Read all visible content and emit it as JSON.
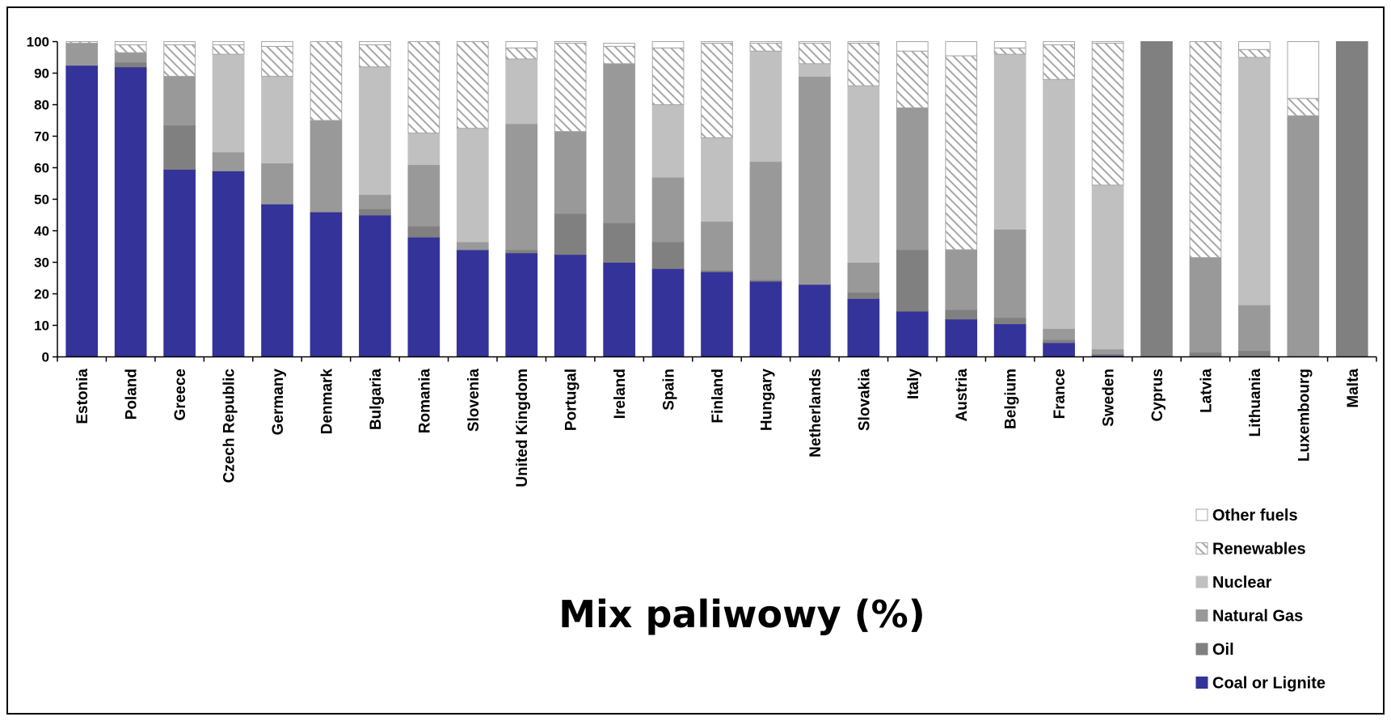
{
  "chart_data": {
    "type": "bar",
    "stacked": true,
    "title": "Mix paliwowy (%)",
    "xlabel": "",
    "ylabel": "",
    "ylim": [
      0,
      100
    ],
    "yticks": [
      "0",
      "10",
      "20",
      "30",
      "40",
      "50",
      "60",
      "70",
      "80",
      "90",
      "100"
    ],
    "legend_position": "bottom-right",
    "grid": false,
    "categories": [
      "Estonia",
      "Poland",
      "Greece",
      "Czech Republic",
      "Germany",
      "Denmark",
      "Bulgaria",
      "Romania",
      "Slovenia",
      "United Kingdom",
      "Portugal",
      "Ireland",
      "Spain",
      "Finland",
      "Hungary",
      "Netherlands",
      "Slovakia",
      "Italy",
      "Austria",
      "Belgium",
      "France",
      "Sweden",
      "Cyprus",
      "Latvia",
      "Lithuania",
      "Luxembourg",
      "Malta"
    ],
    "series": [
      {
        "name": "Coal or Lignite",
        "color": "#333399",
        "pattern": "solid",
        "values": [
          92.5,
          92,
          59.5,
          59,
          48.5,
          46,
          45,
          38,
          34,
          33,
          32.5,
          30,
          28,
          27,
          24,
          23,
          18.5,
          14.5,
          12,
          10.5,
          4.5,
          0.5,
          0,
          0,
          0,
          0,
          0
        ]
      },
      {
        "name": "Oil",
        "color": "#808080",
        "pattern": "solid",
        "values": [
          0,
          1.5,
          14,
          0,
          0,
          0,
          2,
          3.5,
          0,
          1,
          13,
          12.5,
          8.5,
          0.5,
          0.5,
          0,
          2,
          19.5,
          3,
          2,
          1,
          0.5,
          100,
          1.5,
          2,
          0,
          100
        ]
      },
      {
        "name": "Natural Gas",
        "color": "#999999",
        "pattern": "solid",
        "values": [
          7,
          3,
          15.5,
          6,
          13,
          29,
          4.5,
          19.5,
          2.5,
          40,
          26,
          50.5,
          20.5,
          15.5,
          37.5,
          66,
          9.5,
          45,
          19,
          28,
          3.5,
          1.5,
          0,
          30,
          14.5,
          76.5,
          0
        ]
      },
      {
        "name": "Nuclear",
        "color": "#c0c0c0",
        "pattern": "solid",
        "values": [
          0,
          0,
          0,
          31,
          27.5,
          0,
          40.5,
          10,
          36,
          20.5,
          0,
          0,
          23,
          26.5,
          35,
          4,
          56,
          0,
          0,
          55.5,
          79,
          52,
          0,
          0,
          78.5,
          0,
          0
        ]
      },
      {
        "name": "Renewables",
        "color": "#ffffff",
        "pattern": "hatch",
        "values": [
          0.5,
          2.5,
          10,
          3,
          9.5,
          25,
          7,
          29,
          27.5,
          3.5,
          28,
          5.5,
          18,
          30,
          2.5,
          6.5,
          13.5,
          18,
          61.5,
          2,
          11,
          45,
          0,
          68.5,
          2.5,
          5.5,
          0
        ]
      },
      {
        "name": "Other fuels",
        "color": "#ffffff",
        "pattern": "solid",
        "values": [
          0,
          1,
          1,
          1,
          1.5,
          0,
          1,
          0,
          0,
          2,
          0.5,
          1,
          2,
          0.5,
          0.5,
          0.5,
          0.5,
          3,
          4.5,
          2,
          1,
          0.5,
          0,
          0,
          2.5,
          18,
          0
        ]
      }
    ]
  }
}
